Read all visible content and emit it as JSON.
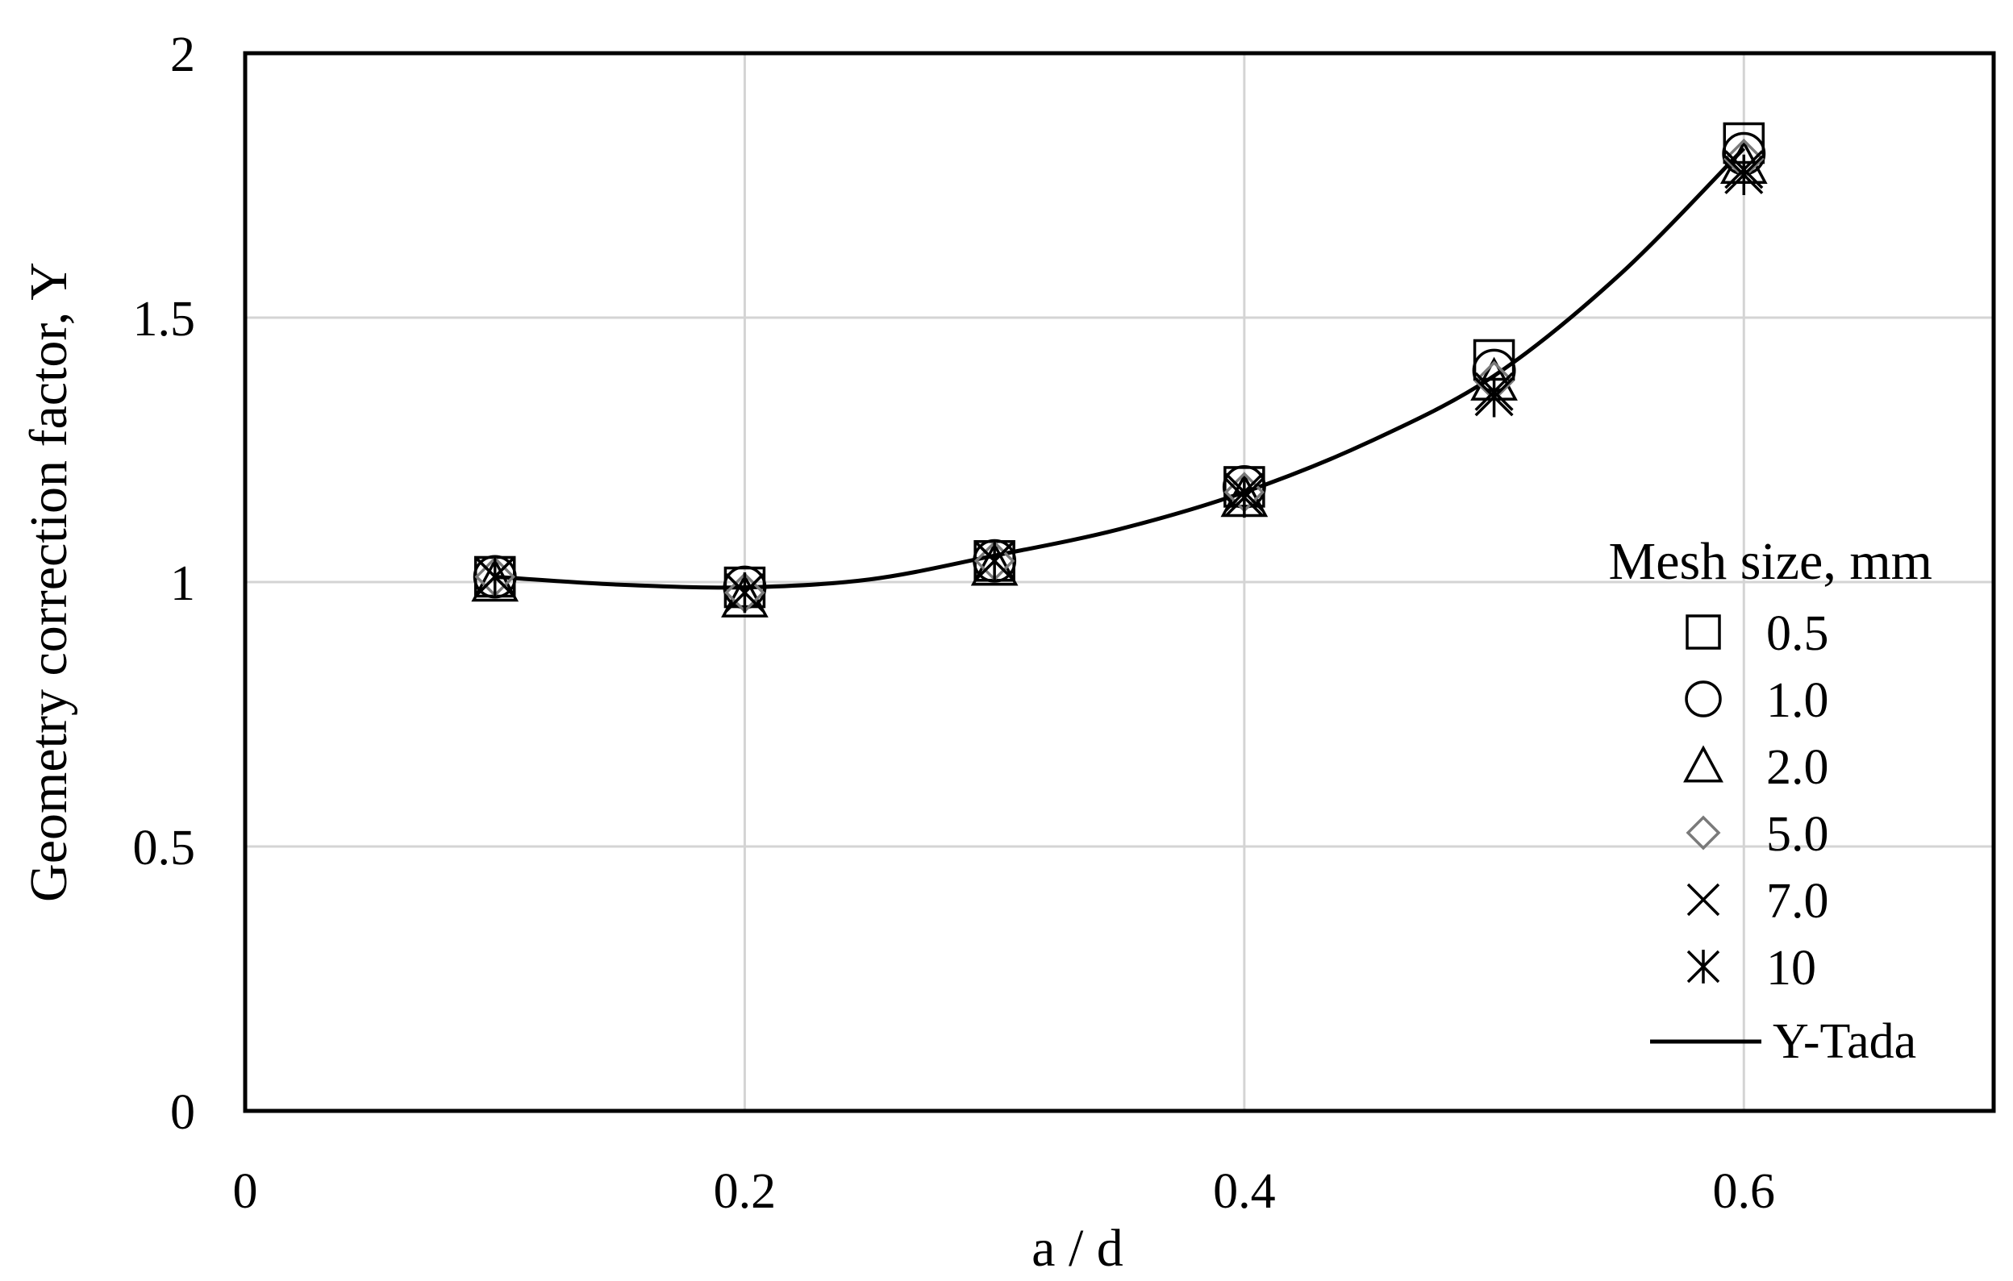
{
  "chart_data": {
    "type": "scatter",
    "title": "",
    "xlabel": "a / d",
    "ylabel": "Geometry correction factor, Y",
    "xlim": [
      0,
      0.7
    ],
    "ylim": [
      0,
      2
    ],
    "x_ticks": [
      0,
      0.2,
      0.4,
      0.6
    ],
    "x_tick_labels": [
      "0",
      "0.2",
      "0.4",
      "0.6"
    ],
    "y_ticks": [
      0,
      0.5,
      1,
      1.5,
      2
    ],
    "y_tick_labels": [
      "0",
      "0.5",
      "1",
      "1.5",
      "2"
    ],
    "grid": true,
    "legend": {
      "title": "Mesh size, mm",
      "position": "right",
      "entries": [
        "0.5",
        "1.0",
        "2.0",
        "5.0",
        "7.0",
        "10",
        "Y-Tada"
      ]
    },
    "x": [
      0.1,
      0.2,
      0.3,
      0.4,
      0.5,
      0.6
    ],
    "series": [
      {
        "name": "0.5",
        "marker": "square",
        "values": [
          1.01,
          0.99,
          1.04,
          1.18,
          1.42,
          1.83
        ]
      },
      {
        "name": "1.0",
        "marker": "circle",
        "values": [
          1.01,
          0.99,
          1.04,
          1.18,
          1.4,
          1.81
        ]
      },
      {
        "name": "2.0",
        "marker": "triangle",
        "values": [
          1.0,
          0.97,
          1.03,
          1.16,
          1.38,
          1.79
        ]
      },
      {
        "name": "5.0",
        "marker": "diamond",
        "values": [
          1.01,
          0.98,
          1.04,
          1.17,
          1.38,
          1.8
        ]
      },
      {
        "name": "7.0",
        "marker": "x",
        "values": [
          1.01,
          0.98,
          1.04,
          1.17,
          1.36,
          1.78
        ]
      },
      {
        "name": "10",
        "marker": "asterisk",
        "values": [
          1.01,
          0.98,
          1.04,
          1.16,
          1.35,
          1.77
        ]
      }
    ],
    "line": {
      "name": "Y-Tada",
      "x": [
        0.1,
        0.15,
        0.2,
        0.25,
        0.3,
        0.35,
        0.4,
        0.45,
        0.5,
        0.55,
        0.6
      ],
      "values": [
        1.01,
        0.995,
        0.99,
        1.005,
        1.05,
        1.1,
        1.17,
        1.265,
        1.39,
        1.58,
        1.82
      ]
    }
  }
}
